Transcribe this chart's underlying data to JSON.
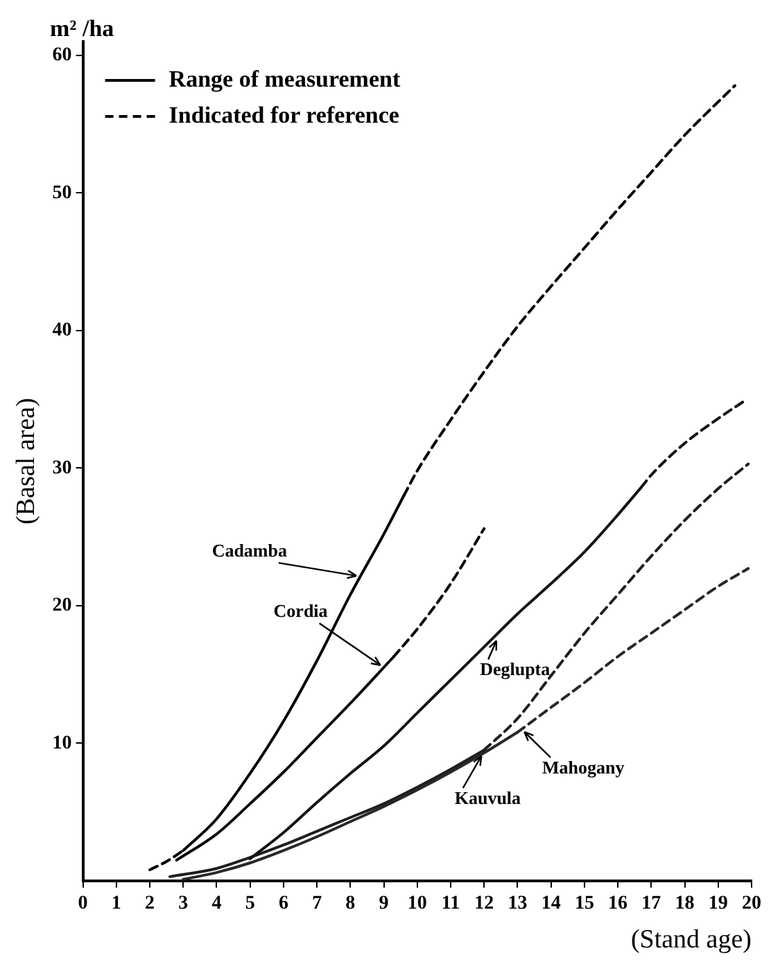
{
  "chart_data": {
    "type": "line",
    "xlabel": "(Stand age)",
    "ylabel": "(Basal area)",
    "xlim": [
      0,
      20
    ],
    "xticks": [
      0,
      1,
      2,
      3,
      4,
      5,
      6,
      7,
      8,
      9,
      10,
      11,
      12,
      13,
      14,
      15,
      16,
      17,
      18,
      19,
      20
    ],
    "ylim": [
      0,
      61
    ],
    "yticks": [
      10,
      20,
      30,
      40,
      50,
      60
    ],
    "grid": false,
    "legend": "top left",
    "marker": "none",
    "annotations": [
      "m² /ha",
      {
        "text": "Cadamba",
        "x": 8.3,
        "y": 22.1
      },
      {
        "text": "Cordia",
        "x": 9.0,
        "y": 15.5
      },
      {
        "text": "Deglupta",
        "x": 12.3,
        "y": 17.7
      },
      {
        "text": "Kauvula",
        "x": 11.9,
        "y": 9.36
      },
      {
        "text": "Mahogany",
        "x": 13.1,
        "y": 10.98
      }
    ],
    "series": [
      {
        "name": "Range of measurement",
        "color": "#000000",
        "line_style": "solid",
        "x": [
          3,
          4,
          5,
          6,
          7,
          8,
          9,
          9.6
        ],
        "values": [
          2.2,
          4.5,
          7.8,
          11.6,
          16.0,
          20.8,
          25.2,
          28
        ]
      },
      {
        "name": "Indicated for reference",
        "color": "#000000",
        "line_style": "dashed",
        "x": [
          9.6,
          10,
          11,
          12,
          13,
          14,
          15,
          16,
          17,
          18,
          19.5
        ],
        "values": [
          28,
          29.8,
          33.5,
          37,
          40.3,
          43.2,
          46,
          48.8,
          51.5,
          54.2,
          57.8
        ]
      },
      {
        "color": "#000000",
        "line_style": "dashed",
        "x": [
          2,
          2.5,
          3
        ],
        "values": [
          0.8,
          1.4,
          2.2
        ]
      },
      {
        "color": "#0a0a0a",
        "line_style": "solid",
        "x": [
          2.8,
          4,
          5,
          6,
          7,
          8,
          9.3
        ],
        "values": [
          1.5,
          3.4,
          5.6,
          7.9,
          10.4,
          12.9,
          16.3
        ]
      },
      {
        "color": "#0a0a0a",
        "line_style": "dashed",
        "x": [
          9.3,
          10,
          11,
          12
        ],
        "values": [
          16.3,
          18.3,
          21.6,
          25.6
        ]
      },
      {
        "color": "#141414",
        "line_style": "solid",
        "x": [
          5,
          6,
          7,
          8,
          9,
          10,
          11,
          12,
          13,
          14,
          15,
          16,
          16.7
        ],
        "values": [
          1.6,
          3.5,
          5.7,
          7.8,
          9.8,
          12.2,
          14.6,
          17.0,
          19.4,
          21.6,
          23.9,
          26.6,
          28.6
        ]
      },
      {
        "color": "#141414",
        "line_style": "dashed",
        "x": [
          16.7,
          17,
          18,
          19,
          19.8
        ],
        "values": [
          28.6,
          29.5,
          31.8,
          33.6,
          34.9
        ]
      },
      {
        "color": "#1e1e1e",
        "line_style": "solid",
        "x": [
          2.6,
          4,
          5,
          6,
          7,
          8,
          9,
          10,
          11,
          12
        ],
        "values": [
          0.3,
          0.9,
          1.7,
          2.6,
          3.6,
          4.6,
          5.6,
          6.8,
          8.1,
          9.5
        ]
      },
      {
        "color": "#1e1e1e",
        "line_style": "dashed",
        "x": [
          12,
          13,
          14,
          15,
          16,
          17,
          18,
          19,
          19.9
        ],
        "values": [
          9.5,
          11.8,
          14.9,
          18.0,
          20.8,
          23.6,
          26.2,
          28.5,
          30.3
        ]
      },
      {
        "color": "#282828",
        "line_style": "solid",
        "x": [
          3,
          4,
          5,
          6,
          7,
          8,
          9,
          10,
          11,
          12,
          13
        ],
        "values": [
          0.1,
          0.6,
          1.3,
          2.2,
          3.2,
          4.3,
          5.4,
          6.6,
          7.9,
          9.3,
          10.8
        ]
      },
      {
        "color": "#282828",
        "line_style": "dashed",
        "x": [
          13,
          14,
          15,
          16,
          17,
          18,
          19,
          19.9
        ],
        "values": [
          10.8,
          12.6,
          14.4,
          16.3,
          18.0,
          19.7,
          21.4,
          22.7
        ]
      }
    ]
  }
}
